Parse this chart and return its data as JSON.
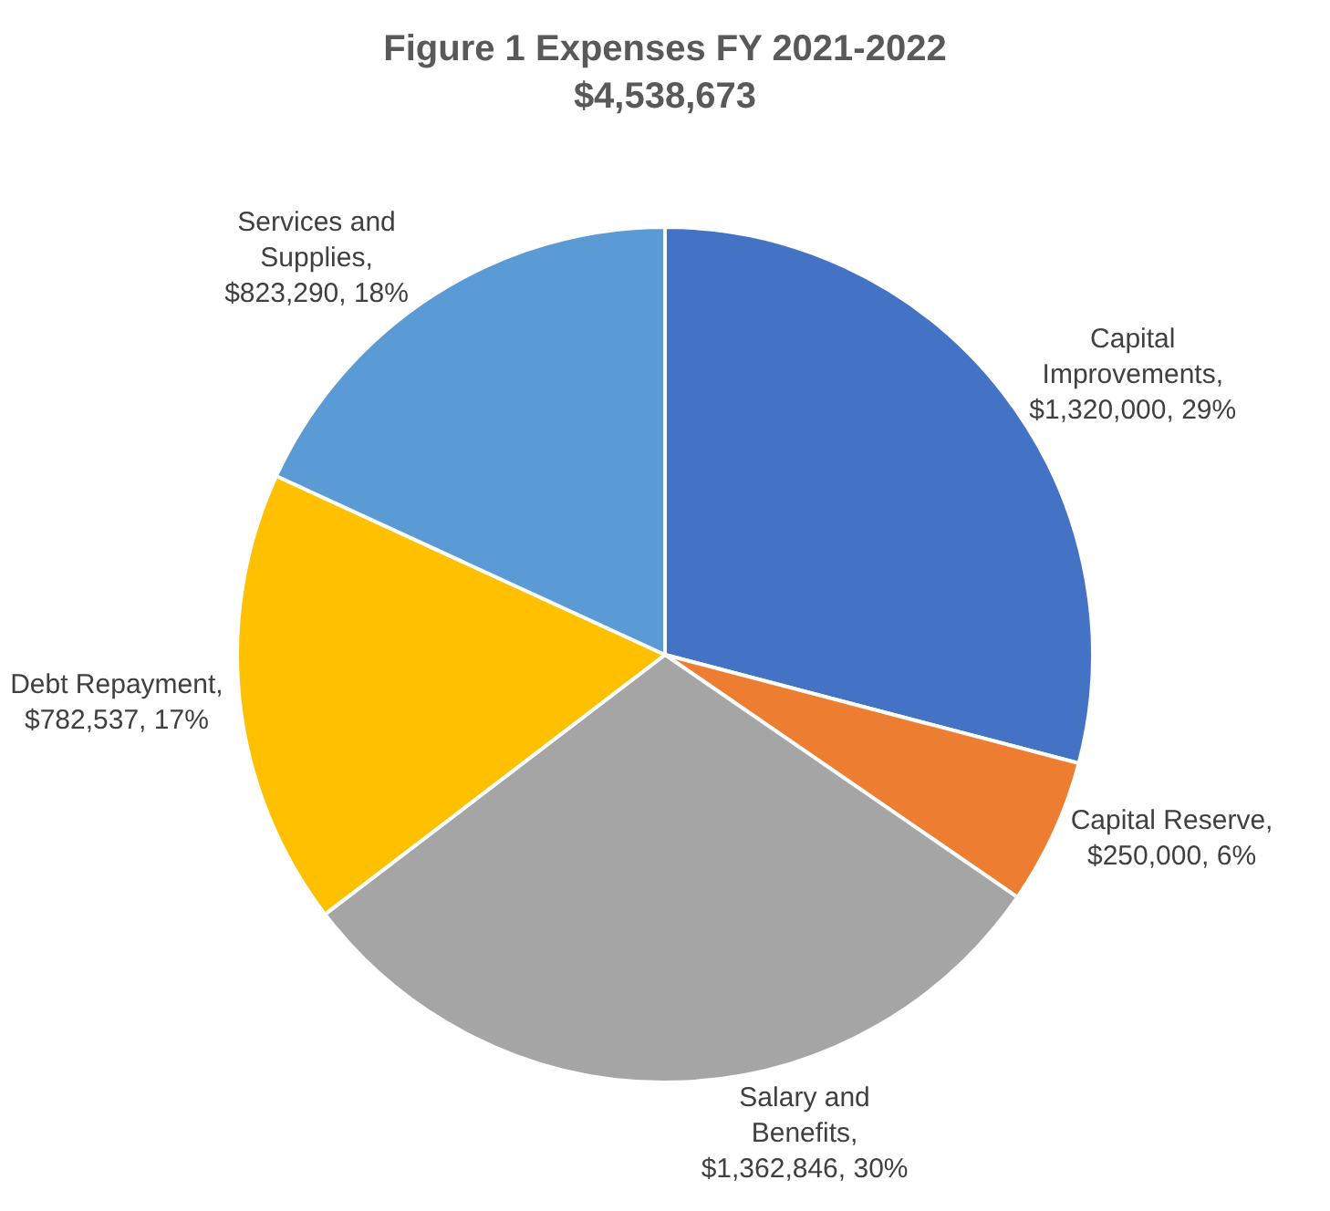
{
  "chart_data": {
    "type": "pie",
    "title": "Figure 1 Expenses FY 2021-2022",
    "subtitle": "$4,538,673",
    "categories": [
      "Capital Improvements",
      "Capital Reserve",
      "Salary and Benefits",
      "Debt Repayment",
      "Services and Supplies"
    ],
    "values": [
      1320000,
      250000,
      1362846,
      782537,
      823290
    ],
    "value_labels": [
      ", $1,320,000, 29%",
      ", $250,000, 6%",
      ", $1,362,846, 30%",
      ", $782,537, 17%",
      ", $823,290, 18%"
    ],
    "colors": [
      "#4472c4",
      "#ed7d31",
      "#a5a5a5",
      "#ffc000",
      "#5b9bd5"
    ],
    "legend": false
  }
}
